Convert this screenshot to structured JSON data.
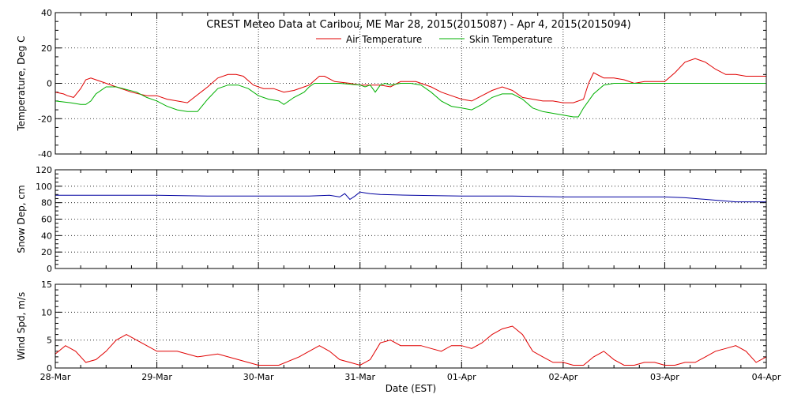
{
  "chart_data": [
    {
      "type": "line",
      "title": "CREST Meteo Data at Caribou, ME   Mar 28, 2015(2015087) - Apr  4, 2015(2015094)",
      "ylabel": "Temperature, Deg C",
      "ylim": [
        -40,
        40
      ],
      "yticks": [
        -40,
        -20,
        0,
        20,
        40
      ],
      "legend_position": "top-center",
      "grid": true,
      "series": [
        {
          "name": "Air Temperature",
          "color": "#e00000",
          "x": [
            0.0,
            0.08,
            0.12,
            0.18,
            0.25,
            0.3,
            0.35,
            0.4,
            0.5,
            0.6,
            0.75,
            0.9,
            1.0,
            1.1,
            1.3,
            1.5,
            1.6,
            1.7,
            1.78,
            1.85,
            1.95,
            2.05,
            2.15,
            2.25,
            2.35,
            2.45,
            2.5,
            2.6,
            2.65,
            2.75,
            2.9,
            3.0,
            3.1,
            3.2,
            3.3,
            3.4,
            3.5,
            3.55,
            3.6,
            3.7,
            3.8,
            3.9,
            4.0,
            4.1,
            4.2,
            4.3,
            4.4,
            4.5,
            4.6,
            4.7,
            4.8,
            4.9,
            5.0,
            5.1,
            5.2,
            5.25,
            5.3,
            5.4,
            5.5,
            5.6,
            5.7,
            5.8,
            5.9,
            6.0,
            6.1,
            6.2,
            6.3,
            6.4,
            6.5,
            6.6,
            6.7,
            6.8,
            6.9,
            7.0
          ],
          "values": [
            -5,
            -6,
            -7,
            -8,
            -3,
            2,
            3,
            2,
            0,
            -2,
            -5,
            -7,
            -7,
            -9,
            -11,
            -2,
            3,
            5,
            5,
            4,
            -1,
            -3,
            -3,
            -5,
            -4,
            -2,
            -1,
            4,
            4,
            1,
            0,
            -1,
            -1,
            -1,
            -2,
            1,
            1,
            1,
            0,
            -2,
            -5,
            -7,
            -9,
            -10,
            -7,
            -4,
            -2,
            -4,
            -8,
            -9,
            -10,
            -10,
            -11,
            -11,
            -9,
            0,
            6,
            3,
            3,
            2,
            0,
            1,
            1,
            1,
            6,
            12,
            14,
            12,
            8,
            5,
            5,
            4,
            4,
            4
          ]
        },
        {
          "name": "Skin Temperature",
          "color": "#00b000",
          "x": [
            0.0,
            0.15,
            0.25,
            0.3,
            0.35,
            0.4,
            0.5,
            0.6,
            0.8,
            0.9,
            1.0,
            1.1,
            1.2,
            1.3,
            1.4,
            1.5,
            1.6,
            1.7,
            1.8,
            1.9,
            2.0,
            2.1,
            2.2,
            2.25,
            2.35,
            2.45,
            2.5,
            2.55,
            2.6,
            2.8,
            3.0,
            3.05,
            3.1,
            3.15,
            3.2,
            3.25,
            3.3,
            3.4,
            3.5,
            3.6,
            3.7,
            3.8,
            3.9,
            4.0,
            4.1,
            4.2,
            4.3,
            4.4,
            4.5,
            4.6,
            4.7,
            4.8,
            4.9,
            5.0,
            5.1,
            5.15,
            5.2,
            5.3,
            5.4,
            5.5,
            5.6,
            5.7,
            5.8,
            6.0,
            6.2,
            6.4,
            6.6,
            6.8,
            6.9,
            7.0
          ],
          "values": [
            -10,
            -11,
            -12,
            -12,
            -10,
            -6,
            -2,
            -2,
            -5,
            -8,
            -10,
            -13,
            -15,
            -16,
            -16,
            -9,
            -3,
            -1,
            -1,
            -3,
            -7,
            -9,
            -10,
            -12,
            -8,
            -5,
            -2,
            0,
            0,
            0,
            -1,
            -2,
            -1,
            -5,
            -1,
            0,
            -1,
            0,
            0,
            -1,
            -5,
            -10,
            -13,
            -14,
            -15,
            -12,
            -8,
            -6,
            -6,
            -9,
            -14,
            -16,
            -17,
            -18,
            -19,
            -19,
            -14,
            -6,
            -1,
            0,
            0,
            0,
            0,
            0,
            0,
            0,
            0,
            0,
            0,
            0
          ]
        }
      ]
    },
    {
      "type": "line",
      "ylabel": "Snow Dep, cm",
      "ylim": [
        0,
        120
      ],
      "yticks": [
        0,
        20,
        40,
        60,
        80,
        100,
        120
      ],
      "grid": true,
      "series": [
        {
          "color": "#0000a0",
          "x": [
            0.0,
            0.5,
            1.0,
            1.5,
            2.0,
            2.5,
            2.7,
            2.8,
            2.85,
            2.9,
            2.95,
            3.0,
            3.05,
            3.1,
            3.2,
            3.5,
            4.0,
            4.5,
            5.0,
            5.5,
            6.0,
            6.2,
            6.5,
            6.7,
            7.0
          ],
          "values": [
            89,
            89,
            89,
            88,
            88,
            88,
            89,
            87,
            91,
            84,
            88,
            93,
            92,
            91,
            90,
            89,
            88,
            88,
            87,
            87,
            87,
            86,
            83,
            81,
            81
          ]
        }
      ]
    },
    {
      "type": "line",
      "ylabel": "Wind Spd, m/s",
      "xlabel": "Date (EST)",
      "ylim": [
        0,
        15
      ],
      "yticks": [
        0,
        5,
        10,
        15
      ],
      "categories": [
        "28-Mar",
        "29-Mar",
        "30-Mar",
        "31-Mar",
        "01-Apr",
        "02-Apr",
        "03-Apr",
        "04-Apr"
      ],
      "grid": true,
      "series": [
        {
          "color": "#e00000",
          "x": [
            0.0,
            0.1,
            0.2,
            0.3,
            0.4,
            0.5,
            0.6,
            0.7,
            0.8,
            0.9,
            1.0,
            1.2,
            1.4,
            1.6,
            1.8,
            2.0,
            2.2,
            2.4,
            2.5,
            2.6,
            2.7,
            2.8,
            2.9,
            3.0,
            3.1,
            3.2,
            3.3,
            3.4,
            3.5,
            3.6,
            3.7,
            3.8,
            3.9,
            4.0,
            4.1,
            4.2,
            4.3,
            4.4,
            4.5,
            4.6,
            4.7,
            4.8,
            4.9,
            5.0,
            5.1,
            5.2,
            5.3,
            5.4,
            5.5,
            5.6,
            5.7,
            5.8,
            5.9,
            6.0,
            6.1,
            6.2,
            6.3,
            6.4,
            6.5,
            6.6,
            6.7,
            6.8,
            6.9,
            7.0
          ],
          "values": [
            2.5,
            4,
            3,
            1,
            1.5,
            3,
            5,
            6,
            5,
            4,
            3,
            3,
            2,
            2.5,
            1.5,
            0.5,
            0.5,
            2,
            3,
            4,
            3,
            1.5,
            1,
            0.5,
            1.5,
            4.5,
            5,
            4,
            4,
            4,
            3.5,
            3,
            4,
            4,
            3.5,
            4.5,
            6,
            7,
            7.5,
            6,
            3,
            2,
            1,
            1,
            0.5,
            0.5,
            2,
            3,
            1.5,
            0.5,
            0.5,
            1,
            1,
            0.5,
            0.5,
            1,
            1,
            2,
            3,
            3.5,
            4,
            3,
            1,
            2
          ]
        }
      ]
    }
  ]
}
